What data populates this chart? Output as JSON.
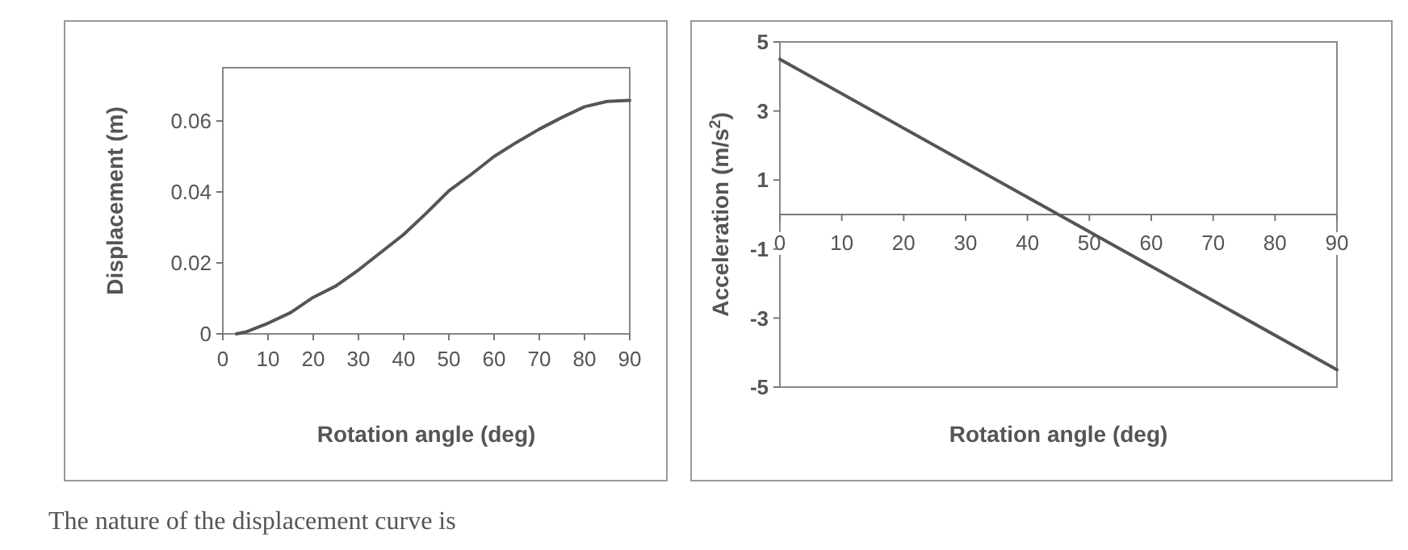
{
  "chart_data": [
    {
      "type": "line",
      "xlabel": "Rotation angle (deg)",
      "ylabel": "Displacement  (m)",
      "x": [
        3,
        5,
        10,
        15,
        20,
        25,
        30,
        35,
        40,
        45,
        50,
        55,
        60,
        65,
        70,
        75,
        80,
        85,
        90
      ],
      "series": [
        {
          "color": "#555555",
          "values": [
            0,
            0.0005,
            0.003,
            0.006,
            0.0103,
            0.0135,
            0.018,
            0.023,
            0.028,
            0.034,
            0.0403,
            0.045,
            0.05,
            0.054,
            0.0577,
            0.061,
            0.064,
            0.0655,
            0.0658
          ]
        }
      ],
      "xlim": [
        0,
        90
      ],
      "xticks": [
        0,
        10,
        20,
        30,
        40,
        50,
        60,
        70,
        80,
        90
      ],
      "ylim": [
        0,
        0.075
      ],
      "yticks": [
        {
          "value": 0,
          "label": "0"
        },
        0.02,
        0.04,
        0.06
      ],
      "annotations": [
        "The nature of the displacement curve is"
      ]
    },
    {
      "type": "line",
      "xlabel": "Rotation angle (deg)",
      "ylabel": "Acceleration (m/s$^{2}$)",
      "x": [
        0,
        90
      ],
      "series": [
        {
          "color": "#555555",
          "values": [
            4.5,
            -4.5
          ]
        }
      ],
      "xlim": [
        0,
        90
      ],
      "xticks": [
        0,
        10,
        20,
        30,
        40,
        50,
        60,
        70,
        80,
        90
      ],
      "ylim": [
        -5,
        5
      ],
      "yticks": [
        5,
        3,
        1,
        -1,
        -3,
        -5
      ]
    }
  ]
}
